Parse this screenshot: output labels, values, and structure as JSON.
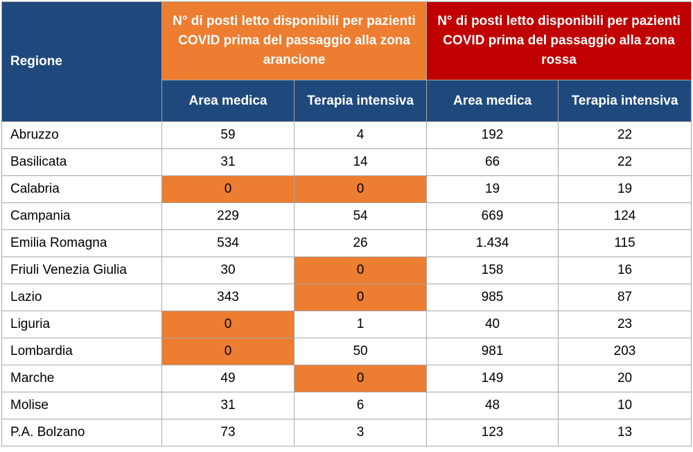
{
  "header": {
    "region": "Regione",
    "group_orange": "N° di posti letto disponibili per pazienti COVID prima del passaggio alla zona arancione",
    "group_red": "N° di posti letto disponibili per pazienti COVID prima del passaggio alla zona rossa",
    "area_medica": "Area medica",
    "terapia_intensiva": "Terapia intensiva"
  },
  "colors": {
    "navy": "#1f497d",
    "orange": "#ed7d31",
    "red": "#c00000"
  },
  "rows": [
    {
      "regione": "Abruzzo",
      "arancione_am": "59",
      "arancione_ti": "4",
      "rossa_am": "192",
      "rossa_ti": "22"
    },
    {
      "regione": "Basilicata",
      "arancione_am": "31",
      "arancione_ti": "14",
      "rossa_am": "66",
      "rossa_ti": "22"
    },
    {
      "regione": "Calabria",
      "arancione_am": "0",
      "arancione_ti": "0",
      "rossa_am": "19",
      "rossa_ti": "19"
    },
    {
      "regione": "Campania",
      "arancione_am": "229",
      "arancione_ti": "54",
      "rossa_am": "669",
      "rossa_ti": "124"
    },
    {
      "regione": "Emilia Romagna",
      "arancione_am": "534",
      "arancione_ti": "26",
      "rossa_am": "1.434",
      "rossa_ti": "115"
    },
    {
      "regione": "Friuli Venezia Giulia",
      "arancione_am": "30",
      "arancione_ti": "0",
      "rossa_am": "158",
      "rossa_ti": "16"
    },
    {
      "regione": "Lazio",
      "arancione_am": "343",
      "arancione_ti": "0",
      "rossa_am": "985",
      "rossa_ti": "87"
    },
    {
      "regione": "Liguria",
      "arancione_am": "0",
      "arancione_ti": "1",
      "rossa_am": "40",
      "rossa_ti": "23"
    },
    {
      "regione": "Lombardia",
      "arancione_am": "0",
      "arancione_ti": "50",
      "rossa_am": "981",
      "rossa_ti": "203"
    },
    {
      "regione": "Marche",
      "arancione_am": "49",
      "arancione_ti": "0",
      "rossa_am": "149",
      "rossa_ti": "20"
    },
    {
      "regione": "Molise",
      "arancione_am": "31",
      "arancione_ti": "6",
      "rossa_am": "48",
      "rossa_ti": "10"
    },
    {
      "regione": "P.A. Bolzano",
      "arancione_am": "73",
      "arancione_ti": "3",
      "rossa_am": "123",
      "rossa_ti": "13"
    }
  ]
}
